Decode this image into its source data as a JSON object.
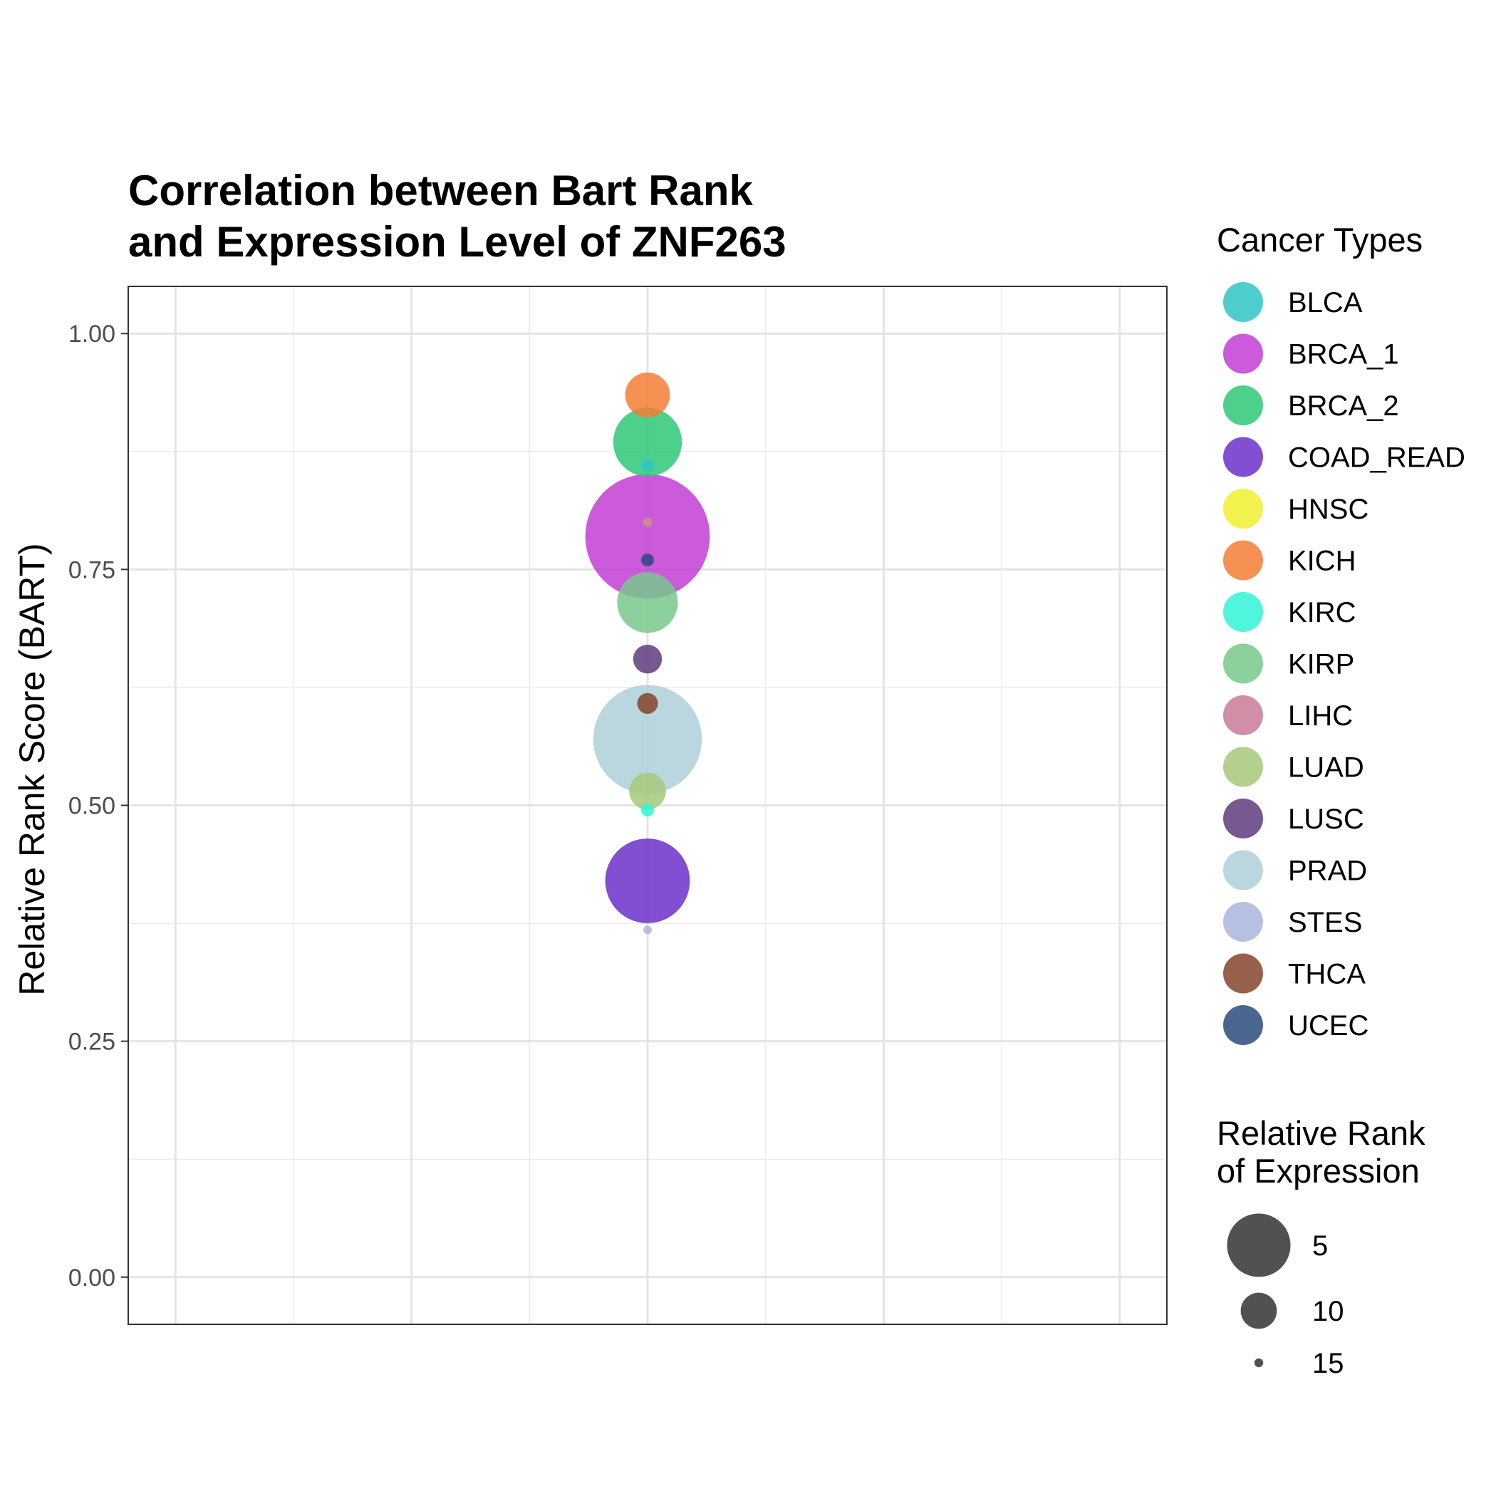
{
  "chart_data": {
    "type": "scatter",
    "title_line1": "Correlation between Bart Rank",
    "title_line2": "and Expression Level of ZNF263",
    "xlabel": "",
    "ylabel": "Relative Rank Score (BART)",
    "ylim": [
      -0.05,
      1.05
    ],
    "xlim": [
      -0.05,
      1.05
    ],
    "y_ticks": [
      0.0,
      0.25,
      0.5,
      0.75,
      1.0
    ],
    "y_tick_labels": [
      "0.00",
      "0.25",
      "0.50",
      "0.75",
      "1.00"
    ],
    "grid": true,
    "legend_position": "right",
    "color_legend_title": "Cancer Types",
    "size_legend_title_line1": "Relative Rank",
    "size_legend_title_line2": "of Expression",
    "size_legend": [
      {
        "label": "5",
        "value": 5
      },
      {
        "label": "10",
        "value": 10
      },
      {
        "label": "15",
        "value": 15
      }
    ],
    "series": [
      {
        "name": "BLCA",
        "color": "#2ec4c4",
        "x": 0.5,
        "y": 0.86,
        "rank": 15
      },
      {
        "name": "BRCA_1",
        "color": "#c23ed3",
        "x": 0.5,
        "y": 0.785,
        "rank": 1
      },
      {
        "name": "BRCA_2",
        "color": "#2ec878",
        "x": 0.5,
        "y": 0.885,
        "rank": 8
      },
      {
        "name": "COAD_READ",
        "color": "#6c2fca",
        "x": 0.5,
        "y": 0.42,
        "rank": 6
      },
      {
        "name": "HNSC",
        "color": "#f0f030",
        "x": 0.5,
        "y": 0.8,
        "rank": 17
      },
      {
        "name": "KICH",
        "color": "#f57c35",
        "x": 0.5,
        "y": 0.935,
        "rank": 11
      },
      {
        "name": "KIRC",
        "color": "#30f5d5",
        "x": 0.5,
        "y": 0.495,
        "rank": 15
      },
      {
        "name": "KIRP",
        "color": "#78c88d",
        "x": 0.5,
        "y": 0.715,
        "rank": 9
      },
      {
        "name": "LIHC",
        "color": "#c97a96",
        "x": 0.5,
        "y": 0.8,
        "rank": 17
      },
      {
        "name": "LUAD",
        "color": "#a6c87a",
        "x": 0.5,
        "y": 0.515,
        "rank": 12
      },
      {
        "name": "LUSC",
        "color": "#5e3c7e",
        "x": 0.5,
        "y": 0.655,
        "rank": 13
      },
      {
        "name": "PRAD",
        "color": "#aecfd9",
        "x": 0.5,
        "y": 0.57,
        "rank": 3
      },
      {
        "name": "STES",
        "color": "#a9b6dc",
        "x": 0.5,
        "y": 0.368,
        "rank": 16
      },
      {
        "name": "THCA",
        "color": "#85442a",
        "x": 0.5,
        "y": 0.608,
        "rank": 14
      },
      {
        "name": "UCEC",
        "color": "#2b4a7e",
        "x": 0.5,
        "y": 0.76,
        "rank": 15
      }
    ]
  }
}
